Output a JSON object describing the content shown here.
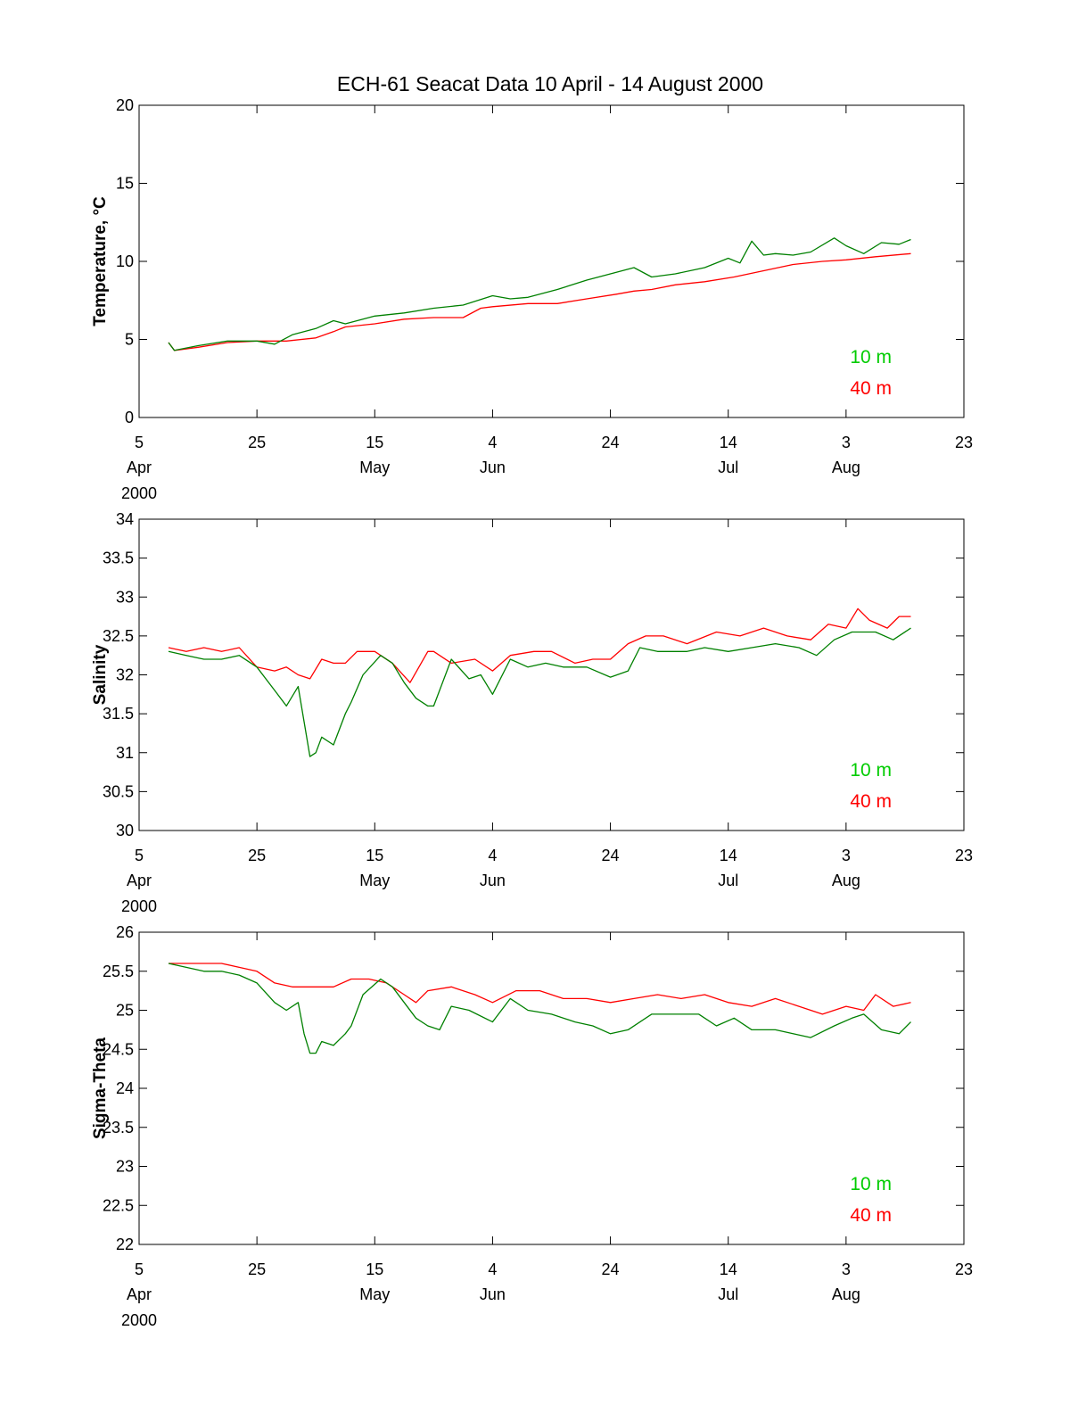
{
  "title": "ECH-61   Seacat Data   10 April - 14 August 2000",
  "colors": {
    "series_10m": "#008000",
    "series_40m": "#ff0000",
    "legend_10m": "#00cc00",
    "legend_40m": "#ff0000"
  },
  "x_ticks": [
    {
      "top": "5",
      "bottom": "Apr",
      "year": "2000"
    },
    {
      "top": "25",
      "bottom": ""
    },
    {
      "top": "15",
      "bottom": "May"
    },
    {
      "top": "4",
      "bottom": "Jun"
    },
    {
      "top": "24",
      "bottom": ""
    },
    {
      "top": "14",
      "bottom": "Jul"
    },
    {
      "top": "3",
      "bottom": "Aug"
    },
    {
      "top": "23",
      "bottom": ""
    }
  ],
  "chart_data": [
    {
      "type": "line",
      "ylabel": "Temperature, °C",
      "ylim": [
        0,
        20
      ],
      "yticks": [
        "0",
        "5",
        "10",
        "15",
        "20"
      ],
      "x_unit": "date",
      "xlim": [
        "2000-04-05",
        "2000-08-23"
      ],
      "legend": [
        "10 m",
        "40 m"
      ],
      "series": [
        {
          "name": "10 m",
          "x": [
            "2000-04-10",
            "2000-04-11",
            "2000-04-15",
            "2000-04-20",
            "2000-04-25",
            "2000-04-28",
            "2000-05-01",
            "2000-05-05",
            "2000-05-08",
            "2000-05-10",
            "2000-05-15",
            "2000-05-20",
            "2000-05-25",
            "2000-05-30",
            "2000-06-04",
            "2000-06-07",
            "2000-06-10",
            "2000-06-15",
            "2000-06-20",
            "2000-06-25",
            "2000-06-28",
            "2000-07-01",
            "2000-07-05",
            "2000-07-10",
            "2000-07-14",
            "2000-07-16",
            "2000-07-18",
            "2000-07-20",
            "2000-07-22",
            "2000-07-25",
            "2000-07-28",
            "2000-08-01",
            "2000-08-03",
            "2000-08-06",
            "2000-08-09",
            "2000-08-12",
            "2000-08-14"
          ],
          "values": [
            4.8,
            4.3,
            4.6,
            4.9,
            4.9,
            4.7,
            5.3,
            5.7,
            6.2,
            6.0,
            6.5,
            6.7,
            7.0,
            7.2,
            7.8,
            7.6,
            7.7,
            8.2,
            8.8,
            9.3,
            9.6,
            9.0,
            9.2,
            9.6,
            10.2,
            9.9,
            11.3,
            10.4,
            10.5,
            10.4,
            10.6,
            11.5,
            11.0,
            10.5,
            11.2,
            11.1,
            11.4
          ]
        },
        {
          "name": "40 m",
          "x": [
            "2000-04-10",
            "2000-04-11",
            "2000-04-15",
            "2000-04-20",
            "2000-04-25",
            "2000-04-30",
            "2000-05-05",
            "2000-05-08",
            "2000-05-10",
            "2000-05-15",
            "2000-05-20",
            "2000-05-25",
            "2000-05-30",
            "2000-06-02",
            "2000-06-04",
            "2000-06-10",
            "2000-06-15",
            "2000-06-20",
            "2000-06-25",
            "2000-06-28",
            "2000-07-01",
            "2000-07-05",
            "2000-07-10",
            "2000-07-15",
            "2000-07-20",
            "2000-07-25",
            "2000-07-30",
            "2000-08-03",
            "2000-08-08",
            "2000-08-14"
          ],
          "values": [
            4.8,
            4.3,
            4.5,
            4.8,
            4.9,
            4.9,
            5.1,
            5.5,
            5.8,
            6.0,
            6.3,
            6.4,
            6.4,
            7.0,
            7.1,
            7.3,
            7.3,
            7.6,
            7.9,
            8.1,
            8.2,
            8.5,
            8.7,
            9.0,
            9.4,
            9.8,
            10.0,
            10.1,
            10.3,
            10.5
          ]
        }
      ]
    },
    {
      "type": "line",
      "ylabel": "Salinity",
      "ylim": [
        30,
        34
      ],
      "yticks": [
        "30",
        "30.5",
        "31",
        "31.5",
        "32",
        "32.5",
        "33",
        "33.5",
        "34"
      ],
      "x_unit": "date",
      "xlim": [
        "2000-04-05",
        "2000-08-23"
      ],
      "legend": [
        "10 m",
        "40 m"
      ],
      "series": [
        {
          "name": "10 m",
          "x": [
            "2000-04-10",
            "2000-04-13",
            "2000-04-16",
            "2000-04-19",
            "2000-04-22",
            "2000-04-25",
            "2000-04-28",
            "2000-04-30",
            "2000-05-02",
            "2000-05-03",
            "2000-05-04",
            "2000-05-05",
            "2000-05-06",
            "2000-05-08",
            "2000-05-10",
            "2000-05-11",
            "2000-05-13",
            "2000-05-16",
            "2000-05-18",
            "2000-05-20",
            "2000-05-22",
            "2000-05-24",
            "2000-05-25",
            "2000-05-28",
            "2000-05-31",
            "2000-06-02",
            "2000-06-04",
            "2000-06-07",
            "2000-06-10",
            "2000-06-13",
            "2000-06-16",
            "2000-06-20",
            "2000-06-24",
            "2000-06-27",
            "2000-06-29",
            "2000-07-02",
            "2000-07-07",
            "2000-07-10",
            "2000-07-14",
            "2000-07-18",
            "2000-07-22",
            "2000-07-26",
            "2000-07-29",
            "2000-08-01",
            "2000-08-04",
            "2000-08-08",
            "2000-08-11",
            "2000-08-14"
          ],
          "values": [
            32.3,
            32.25,
            32.2,
            32.2,
            32.25,
            32.1,
            31.8,
            31.6,
            31.85,
            31.4,
            30.95,
            31.0,
            31.2,
            31.1,
            31.5,
            31.65,
            32.0,
            32.25,
            32.15,
            31.9,
            31.7,
            31.6,
            31.6,
            32.2,
            31.95,
            32.0,
            31.75,
            32.2,
            32.1,
            32.15,
            32.1,
            32.1,
            31.97,
            32.05,
            32.35,
            32.3,
            32.3,
            32.35,
            32.3,
            32.35,
            32.4,
            32.35,
            32.25,
            32.45,
            32.55,
            32.55,
            32.45,
            32.6
          ]
        },
        {
          "name": "40 m",
          "x": [
            "2000-04-10",
            "2000-04-13",
            "2000-04-16",
            "2000-04-19",
            "2000-04-22",
            "2000-04-25",
            "2000-04-28",
            "2000-04-30",
            "2000-05-02",
            "2000-05-04",
            "2000-05-06",
            "2000-05-08",
            "2000-05-10",
            "2000-05-12",
            "2000-05-15",
            "2000-05-18",
            "2000-05-21",
            "2000-05-24",
            "2000-05-25",
            "2000-05-28",
            "2000-06-01",
            "2000-06-04",
            "2000-06-07",
            "2000-06-11",
            "2000-06-14",
            "2000-06-18",
            "2000-06-21",
            "2000-06-24",
            "2000-06-27",
            "2000-06-30",
            "2000-07-03",
            "2000-07-07",
            "2000-07-12",
            "2000-07-16",
            "2000-07-20",
            "2000-07-24",
            "2000-07-28",
            "2000-07-31",
            "2000-08-03",
            "2000-08-05",
            "2000-08-07",
            "2000-08-10",
            "2000-08-12",
            "2000-08-14"
          ],
          "values": [
            32.35,
            32.3,
            32.35,
            32.3,
            32.35,
            32.1,
            32.05,
            32.1,
            32.0,
            31.95,
            32.2,
            32.15,
            32.15,
            32.3,
            32.3,
            32.15,
            31.9,
            32.3,
            32.3,
            32.15,
            32.2,
            32.05,
            32.25,
            32.3,
            32.3,
            32.15,
            32.2,
            32.2,
            32.4,
            32.5,
            32.5,
            32.4,
            32.55,
            32.5,
            32.6,
            32.5,
            32.45,
            32.65,
            32.6,
            32.85,
            32.7,
            32.6,
            32.75,
            32.75
          ]
        }
      ]
    },
    {
      "type": "line",
      "ylabel": "Sigma-Theta",
      "ylim": [
        22,
        26
      ],
      "yticks": [
        "22",
        "22.5",
        "23",
        "23.5",
        "24",
        "24.5",
        "25",
        "25.5",
        "26"
      ],
      "x_unit": "date",
      "xlim": [
        "2000-04-05",
        "2000-08-23"
      ],
      "legend": [
        "10 m",
        "40 m"
      ],
      "series": [
        {
          "name": "10 m",
          "x": [
            "2000-04-10",
            "2000-04-13",
            "2000-04-16",
            "2000-04-19",
            "2000-04-22",
            "2000-04-25",
            "2000-04-28",
            "2000-04-30",
            "2000-05-02",
            "2000-05-03",
            "2000-05-04",
            "2000-05-05",
            "2000-05-06",
            "2000-05-08",
            "2000-05-10",
            "2000-05-11",
            "2000-05-13",
            "2000-05-16",
            "2000-05-18",
            "2000-05-20",
            "2000-05-22",
            "2000-05-24",
            "2000-05-26",
            "2000-05-28",
            "2000-05-31",
            "2000-06-04",
            "2000-06-07",
            "2000-06-10",
            "2000-06-14",
            "2000-06-18",
            "2000-06-21",
            "2000-06-24",
            "2000-06-27",
            "2000-07-01",
            "2000-07-05",
            "2000-07-09",
            "2000-07-12",
            "2000-07-15",
            "2000-07-18",
            "2000-07-22",
            "2000-07-25",
            "2000-07-28",
            "2000-08-01",
            "2000-08-04",
            "2000-08-06",
            "2000-08-09",
            "2000-08-12",
            "2000-08-14"
          ],
          "values": [
            25.6,
            25.55,
            25.5,
            25.5,
            25.45,
            25.35,
            25.1,
            25.0,
            25.1,
            24.7,
            24.45,
            24.45,
            24.6,
            24.55,
            24.7,
            24.8,
            25.2,
            25.4,
            25.3,
            25.1,
            24.9,
            24.8,
            24.75,
            25.05,
            25.0,
            24.85,
            25.15,
            25.0,
            24.95,
            24.85,
            24.8,
            24.7,
            24.75,
            24.95,
            24.95,
            24.95,
            24.8,
            24.9,
            24.75,
            24.75,
            24.7,
            24.65,
            24.8,
            24.9,
            24.95,
            24.75,
            24.7,
            24.85
          ]
        },
        {
          "name": "40 m",
          "x": [
            "2000-04-10",
            "2000-04-13",
            "2000-04-16",
            "2000-04-19",
            "2000-04-22",
            "2000-04-25",
            "2000-04-28",
            "2000-05-01",
            "2000-05-04",
            "2000-05-08",
            "2000-05-11",
            "2000-05-14",
            "2000-05-17",
            "2000-05-20",
            "2000-05-22",
            "2000-05-24",
            "2000-05-28",
            "2000-06-01",
            "2000-06-04",
            "2000-06-08",
            "2000-06-12",
            "2000-06-16",
            "2000-06-20",
            "2000-06-24",
            "2000-06-28",
            "2000-07-02",
            "2000-07-06",
            "2000-07-10",
            "2000-07-14",
            "2000-07-18",
            "2000-07-22",
            "2000-07-26",
            "2000-07-30",
            "2000-08-03",
            "2000-08-06",
            "2000-08-08",
            "2000-08-11",
            "2000-08-14"
          ],
          "values": [
            25.6,
            25.6,
            25.6,
            25.6,
            25.55,
            25.5,
            25.35,
            25.3,
            25.3,
            25.3,
            25.4,
            25.4,
            25.35,
            25.2,
            25.1,
            25.25,
            25.3,
            25.2,
            25.1,
            25.25,
            25.25,
            25.15,
            25.15,
            25.1,
            25.15,
            25.2,
            25.15,
            25.2,
            25.1,
            25.05,
            25.15,
            25.05,
            24.95,
            25.05,
            25.0,
            25.2,
            25.05,
            25.1
          ]
        }
      ]
    }
  ]
}
